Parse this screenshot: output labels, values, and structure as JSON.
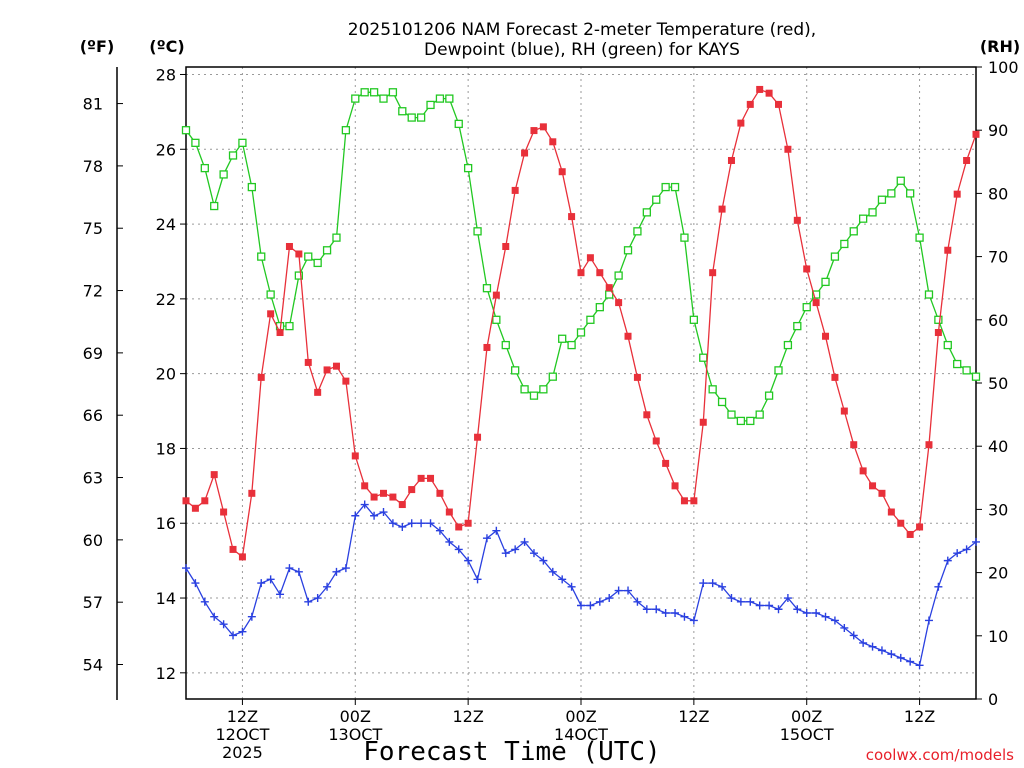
{
  "chart_data": {
    "type": "line",
    "title_line1": "2025101206 NAM Forecast 2-meter Temperature (red),",
    "title_line2": "Dewpoint (blue), RH (green) for KAYS",
    "xlabel": "Forecast Time (UTC)",
    "watermark": "coolwx.com/models",
    "units": {
      "fahrenheit": "(ºF)",
      "celsius": "(ºC)",
      "rh": "(RH)"
    },
    "celsius_ticks": [
      "12",
      "14",
      "16",
      "18",
      "20",
      "22",
      "24",
      "26",
      "28"
    ],
    "fahrenheit_ticks": [
      "54",
      "57",
      "60",
      "63",
      "66",
      "69",
      "72",
      "75",
      "78",
      "81"
    ],
    "rh_ticks": [
      "0",
      "10",
      "20",
      "30",
      "40",
      "50",
      "60",
      "70",
      "80",
      "90",
      "100"
    ],
    "celsius_range": [
      11.3,
      28.2
    ],
    "rh_range": [
      0,
      100
    ],
    "x_range_hours": [
      6,
      90
    ],
    "x_ticks": [
      {
        "hour": 12,
        "line1": "12Z",
        "line2": "12OCT",
        "line3": "2025"
      },
      {
        "hour": 24,
        "line1": "00Z",
        "line2": "13OCT",
        "line3": ""
      },
      {
        "hour": 36,
        "line1": "12Z",
        "line2": "",
        "line3": ""
      },
      {
        "hour": 48,
        "line1": "00Z",
        "line2": "14OCT",
        "line3": ""
      },
      {
        "hour": 60,
        "line1": "12Z",
        "line2": "",
        "line3": ""
      },
      {
        "hour": 72,
        "line1": "00Z",
        "line2": "15OCT",
        "line3": ""
      },
      {
        "hour": 84,
        "line1": "12Z",
        "line2": "",
        "line3": ""
      }
    ],
    "series": [
      {
        "name": "Temperature",
        "unit": "C",
        "color": "#e8303a",
        "marker": "filled-square",
        "values": [
          16.6,
          16.4,
          16.6,
          17.3,
          16.3,
          15.3,
          15.1,
          16.8,
          19.9,
          21.6,
          21.1,
          23.4,
          23.2,
          20.3,
          19.5,
          20.1,
          20.2,
          19.8,
          17.8,
          17.0,
          16.7,
          16.8,
          16.7,
          16.5,
          16.9,
          17.2,
          17.2,
          16.8,
          16.3,
          15.9,
          16.0,
          18.3,
          20.7,
          22.1,
          23.4,
          24.9,
          25.9,
          26.5,
          26.6,
          26.2,
          25.4,
          24.2,
          22.7,
          23.1,
          22.7,
          22.3,
          21.9,
          21.0,
          19.9,
          18.9,
          18.2,
          17.6,
          17.0,
          16.6,
          16.6,
          18.7,
          22.7,
          24.4,
          25.7,
          26.7,
          27.2,
          27.6,
          27.5,
          27.2,
          26.0,
          24.1,
          22.8,
          21.9,
          21.0,
          19.9,
          19.0,
          18.1,
          17.4,
          17.0,
          16.8,
          16.3,
          16.0,
          15.7,
          15.9,
          18.1,
          21.1,
          23.3,
          24.8,
          25.7,
          26.4
        ]
      },
      {
        "name": "Dewpoint",
        "unit": "C",
        "color": "#2a40e0",
        "marker": "plus",
        "values": [
          14.8,
          14.4,
          13.9,
          13.5,
          13.3,
          13.0,
          13.1,
          13.5,
          14.4,
          14.5,
          14.1,
          14.8,
          14.7,
          13.9,
          14.0,
          14.3,
          14.7,
          14.8,
          16.2,
          16.5,
          16.2,
          16.3,
          16.0,
          15.9,
          16.0,
          16.0,
          16.0,
          15.8,
          15.5,
          15.3,
          15.0,
          14.5,
          15.6,
          15.8,
          15.2,
          15.3,
          15.5,
          15.2,
          15.0,
          14.7,
          14.5,
          14.3,
          13.8,
          13.8,
          13.9,
          14.0,
          14.2,
          14.2,
          13.9,
          13.7,
          13.7,
          13.6,
          13.6,
          13.5,
          13.4,
          14.4,
          14.4,
          14.3,
          14.0,
          13.9,
          13.9,
          13.8,
          13.8,
          13.7,
          14.0,
          13.7,
          13.6,
          13.6,
          13.5,
          13.4,
          13.2,
          13.0,
          12.8,
          12.7,
          12.6,
          12.5,
          12.4,
          12.3,
          12.2,
          13.4,
          14.3,
          15.0,
          15.2,
          15.3,
          15.5
        ]
      },
      {
        "name": "RH",
        "unit": "%",
        "color": "#22c822",
        "marker": "open-square",
        "values": [
          90,
          88,
          84,
          78,
          83,
          86,
          88,
          81,
          70,
          64,
          59,
          59,
          67,
          70,
          69,
          71,
          73,
          90,
          95,
          96,
          96,
          95,
          96,
          93,
          92,
          92,
          94,
          95,
          95,
          91,
          84,
          74,
          65,
          60,
          56,
          52,
          49,
          48,
          49,
          51,
          57,
          56,
          58,
          60,
          62,
          64,
          67,
          71,
          74,
          77,
          79,
          81,
          81,
          73,
          60,
          54,
          49,
          47,
          45,
          44,
          44,
          45,
          48,
          52,
          56,
          59,
          62,
          64,
          66,
          70,
          72,
          74,
          76,
          77,
          79,
          80,
          82,
          80,
          73,
          64,
          60,
          56,
          53,
          52,
          51
        ]
      }
    ]
  }
}
